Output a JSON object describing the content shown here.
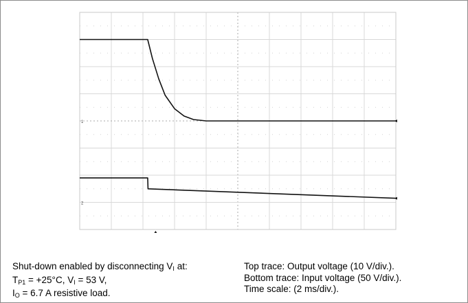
{
  "chart_data": {
    "type": "line",
    "time_scale": "2 ms/div",
    "traces": [
      {
        "label": "Top trace: Output voltage (10 V/div.).",
        "marker": "1",
        "x_div": [
          0,
          2.15,
          2.3,
          2.5,
          2.7,
          3.0,
          3.3,
          3.6,
          4.0,
          10
        ],
        "y_div": [
          3.0,
          3.0,
          2.3,
          1.55,
          0.95,
          0.45,
          0.18,
          0.05,
          0.0,
          0.0
        ]
      },
      {
        "label": "Bottom trace: Input voltage (50 V/div.).",
        "marker": "2",
        "x_div": [
          0,
          2.15,
          2.16,
          10
        ],
        "y_div": [
          -2.1,
          -2.1,
          -2.5,
          -2.85
        ]
      }
    ]
  },
  "caption": {
    "left": {
      "line1_text": "Shut-down enabled by disconnecting V",
      "line1_sub": "I",
      "line1_end": " at:",
      "line2_a": "T",
      "line2_a_sub": "P1",
      "line2_b": " = +25°C, V",
      "line2_b_sub": "I",
      "line2_c": " = 53 V,",
      "line3_a": "I",
      "line3_a_sub": "O",
      "line3_b": " = 6.7 A resistive load."
    },
    "right": {
      "line1": "Top trace: Output voltage (10 V/div.).",
      "line2": "Bottom trace: Input voltage (50 V/div.).",
      "line3": "Time scale: (2 ms/div.)."
    }
  }
}
